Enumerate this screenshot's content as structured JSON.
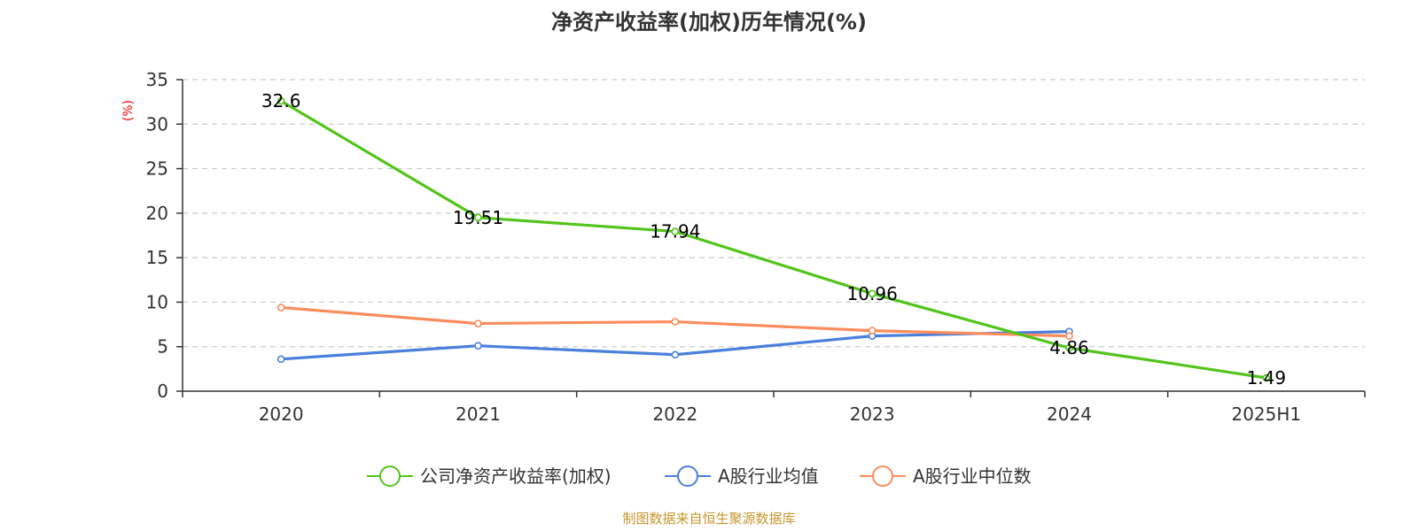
{
  "colors": {
    "company": "#52c41a",
    "industry_mean": "#4a7fdc",
    "industry_median": "#fc8c5c",
    "source": "#c8962d",
    "axis": "#333333",
    "grid": "#cccccc",
    "ylabel": "#ff0000"
  },
  "source_text": "制图数据来自恒生聚源数据库",
  "chart_data": {
    "type": "line",
    "title": "净资产收益率(加权)历年情况(%)",
    "xlabel": "",
    "ylabel": "(%)",
    "ylim": [
      0,
      35
    ],
    "yticks": [
      "0",
      "5",
      "10",
      "15",
      "20",
      "25",
      "30",
      "35"
    ],
    "grid": true,
    "legend_position": "bottom-center",
    "categories": [
      "2020",
      "2021",
      "2022",
      "2023",
      "2024",
      "2025H1"
    ],
    "series": [
      {
        "name": "公司净资产收益率(加权)",
        "values": [
          32.6,
          19.51,
          17.94,
          10.96,
          4.86,
          1.49
        ],
        "labels": [
          "32.6",
          "19.51",
          "17.94",
          "10.96",
          "4.86",
          "1.49"
        ]
      },
      {
        "name": "A股行业均值",
        "values": [
          3.6,
          5.1,
          4.1,
          6.2,
          6.7,
          null
        ]
      },
      {
        "name": "A股行业中位数",
        "values": [
          9.4,
          7.6,
          7.8,
          6.8,
          6.2,
          null
        ]
      }
    ]
  }
}
